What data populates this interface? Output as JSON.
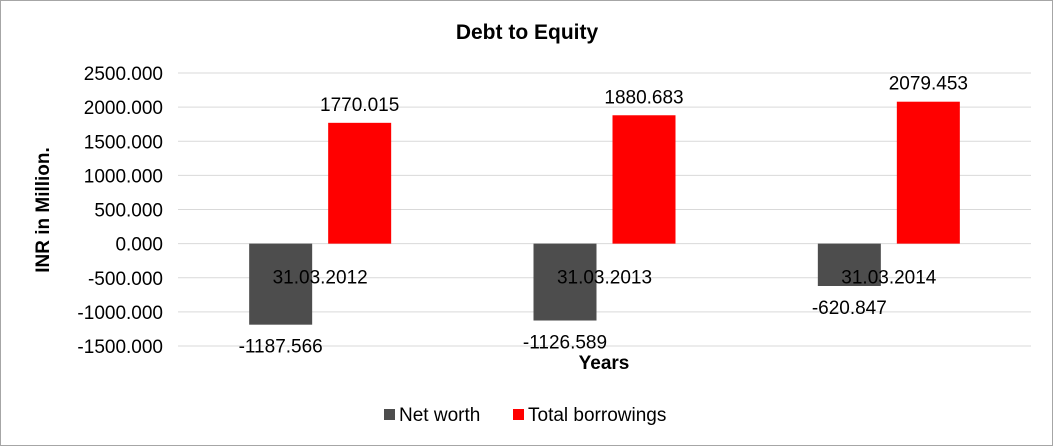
{
  "chart_data": {
    "type": "bar",
    "title": "Debt to Equity",
    "xlabel": "Years",
    "ylabel": "INR in Million.",
    "categories": [
      "31.03.2012",
      "31.03.2013",
      "31.03.2014"
    ],
    "series": [
      {
        "name": "Net worth",
        "color": "#4d4d4d",
        "values": [
          -1187.566,
          -1126.589,
          -620.847
        ]
      },
      {
        "name": "Total borrowings",
        "color": "#ff0000",
        "values": [
          1770.015,
          1880.683,
          2079.453
        ]
      }
    ],
    "data_labels": [
      [
        "-1187.566",
        "-1126.589",
        "-620.847"
      ],
      [
        "1770.015",
        "1880.683",
        "2079.453"
      ]
    ],
    "ylim": [
      -1500,
      2500
    ],
    "yticks": [
      2500,
      2000,
      1500,
      1000,
      500,
      0,
      -500,
      -1000,
      -1500
    ],
    "ytick_labels": [
      "2500.000",
      "2000.000",
      "1500.000",
      "1000.000",
      "500.000",
      "0.000",
      "-500.000",
      "-1000.000",
      "-1500.000"
    ],
    "grid": true,
    "legend_position": "bottom"
  }
}
